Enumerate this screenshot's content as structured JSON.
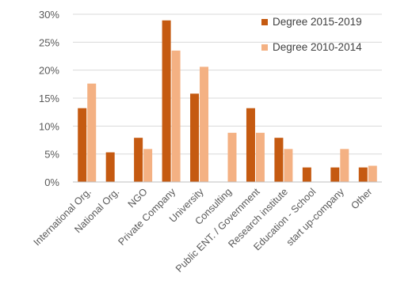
{
  "chart_data": {
    "type": "bar",
    "title": "",
    "xlabel": "",
    "ylabel": "",
    "ylim": [
      0,
      30
    ],
    "y_ticks": [
      "0%",
      "5%",
      "10%",
      "15%",
      "20%",
      "25%",
      "30%"
    ],
    "grid": true,
    "legend_position": "top-right",
    "categories": [
      "International Org.",
      "National Org.",
      "NGO",
      "Private Company",
      "University",
      "Consulting",
      "Public ENT. / Government",
      "Research institute",
      "Education - School",
      "start up-company",
      "Other"
    ],
    "series": [
      {
        "name": "Degree 2015-2019",
        "color": "#c55a11",
        "values": [
          13.2,
          5.3,
          7.9,
          28.9,
          15.8,
          0,
          13.2,
          7.9,
          2.6,
          2.6,
          2.6
        ]
      },
      {
        "name": "Degree 2010-2014",
        "color": "#f4b183",
        "values": [
          17.6,
          0,
          5.9,
          23.5,
          20.6,
          8.8,
          8.8,
          5.9,
          0,
          5.9,
          2.9
        ]
      }
    ]
  }
}
